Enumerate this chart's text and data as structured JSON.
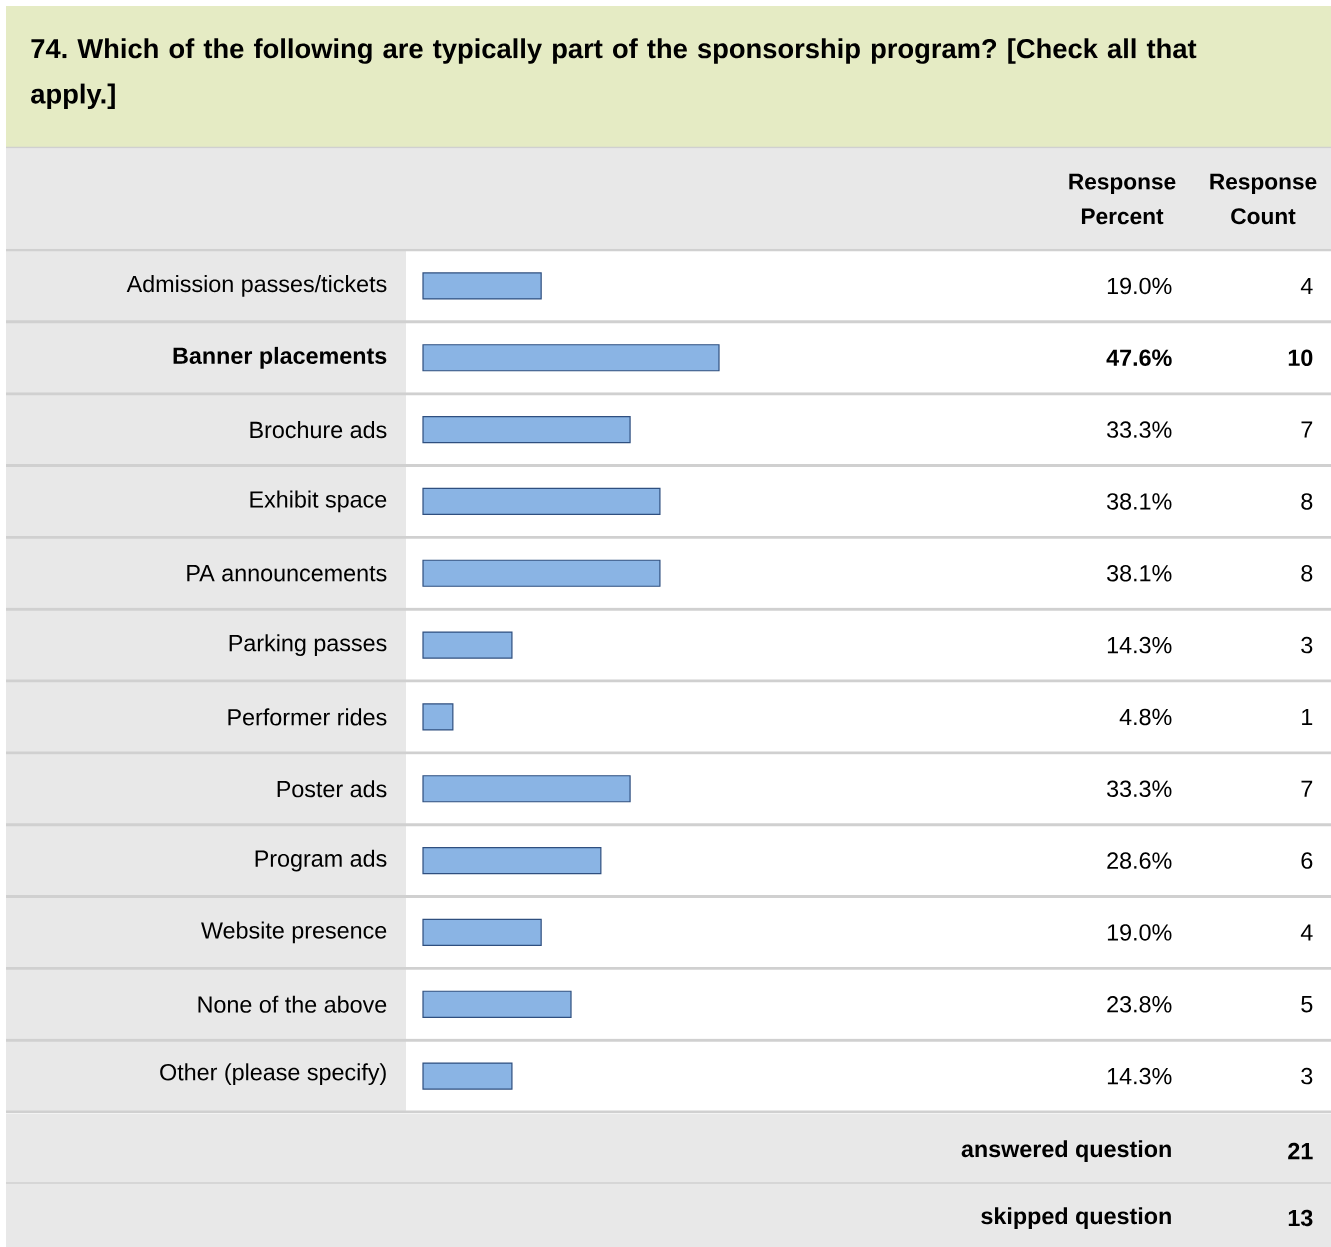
{
  "chart_data": {
    "type": "bar",
    "orientation": "horizontal",
    "title": "74. Which of the following are typically part of the sponsorship program? [Check all that apply.]",
    "categories": [
      "Admission passes/tickets",
      "Banner placements",
      "Brochure ads",
      "Exhibit space",
      "PA announcements",
      "Parking passes",
      "Performer rides",
      "Poster ads",
      "Program ads",
      "Website presence",
      "None of the above",
      "Other (please specify)"
    ],
    "values": [
      19.0,
      47.6,
      33.3,
      38.1,
      38.1,
      14.3,
      4.8,
      33.3,
      28.6,
      19.0,
      23.8,
      14.3
    ],
    "value_labels": [
      "19.0%",
      "47.6%",
      "33.3%",
      "38.1%",
      "38.1%",
      "14.3%",
      "4.8%",
      "33.3%",
      "28.6%",
      "19.0%",
      "23.8%",
      "14.3%"
    ],
    "color": "#8ab4e4",
    "annotations": [
      "Response Percent",
      "Response Count",
      "4",
      "10",
      "7",
      "8",
      "8",
      "3",
      "1",
      "7",
      "6",
      "4",
      "5",
      "3",
      "answered question",
      "21",
      "skipped question",
      "13"
    ]
  }
}
